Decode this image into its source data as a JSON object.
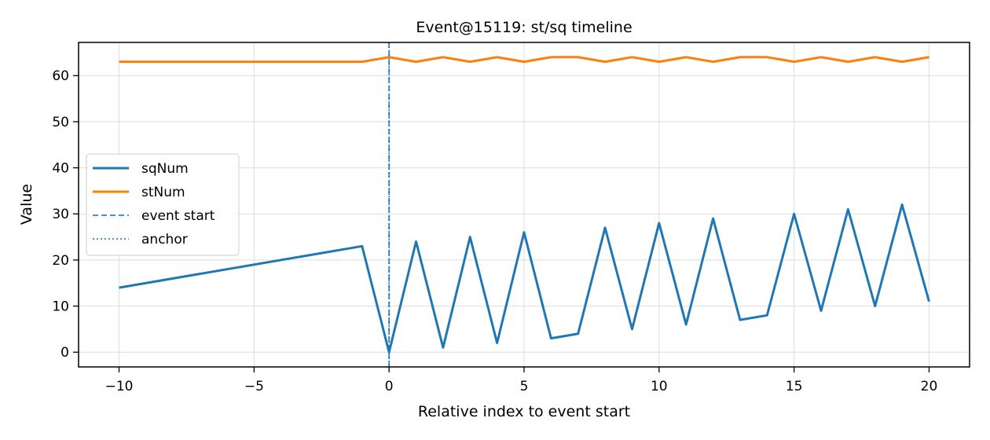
{
  "chart_data": {
    "type": "line",
    "title": "Event@15119: st/sq timeline",
    "xlabel": "Relative index to event start",
    "ylabel": "Value",
    "xlim": [
      -11.5,
      21.5
    ],
    "ylim": [
      -3.2,
      67.2
    ],
    "xticks": [
      -10,
      -5,
      0,
      5,
      10,
      15,
      20
    ],
    "xtick_labels": [
      "−10",
      "−5",
      "0",
      "5",
      "10",
      "15",
      "20"
    ],
    "yticks": [
      0,
      10,
      20,
      30,
      40,
      50,
      60
    ],
    "ytick_labels": [
      "0",
      "10",
      "20",
      "30",
      "40",
      "50",
      "60"
    ],
    "grid": true,
    "legend_position": "center-left",
    "series": [
      {
        "name": "sqNum",
        "color": "#1f77b4",
        "x": [
          -10,
          -1,
          0,
          1,
          2,
          3,
          4,
          5,
          6,
          7,
          8,
          9,
          10,
          11,
          12,
          13,
          14,
          15,
          16,
          17,
          18,
          19,
          20
        ],
        "y": [
          14,
          23,
          0,
          24,
          1,
          25,
          2,
          26,
          3,
          4,
          27,
          5,
          28,
          6,
          29,
          7,
          8,
          30,
          9,
          31,
          10,
          32,
          11
        ]
      },
      {
        "name": "stNum",
        "color": "#ff7f0e",
        "x": [
          -10,
          -1,
          0,
          1,
          2,
          3,
          4,
          5,
          6,
          7,
          8,
          9,
          10,
          11,
          12,
          13,
          14,
          15,
          16,
          17,
          18,
          19,
          20
        ],
        "y": [
          63,
          63,
          64,
          63,
          64,
          63,
          64,
          63,
          64,
          64,
          63,
          64,
          63,
          64,
          63,
          64,
          64,
          63,
          64,
          63,
          64,
          63,
          64
        ]
      }
    ],
    "vlines": [
      {
        "name": "event start",
        "x": 0,
        "style": "dashed",
        "color": "#1f77b4"
      },
      {
        "name": "anchor",
        "x": 0,
        "style": "dotted",
        "color": "#1f77b4"
      }
    ]
  }
}
